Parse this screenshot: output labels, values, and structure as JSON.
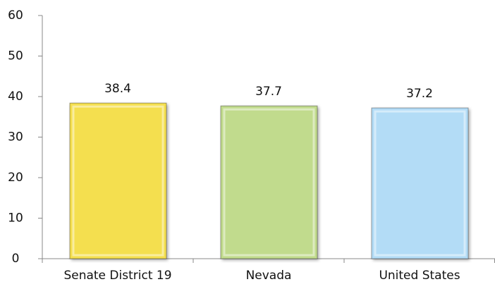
{
  "chart_data": {
    "type": "bar",
    "categories": [
      "Senate District 19",
      "Nevada",
      "United States"
    ],
    "values": [
      38.4,
      37.7,
      37.2
    ],
    "colors": [
      "#f4df4f",
      "#c1db8d",
      "#b3dcf6"
    ],
    "ylim": [
      0,
      60
    ],
    "yticks": [
      0,
      10,
      20,
      30,
      40,
      50,
      60
    ],
    "grid": false
  }
}
